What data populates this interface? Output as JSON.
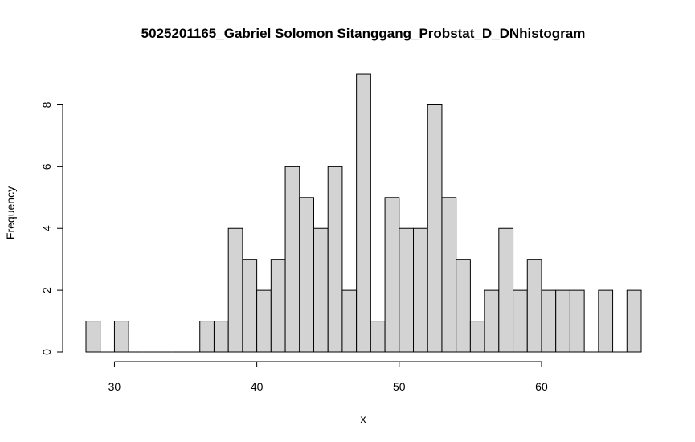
{
  "chart_data": {
    "type": "bar",
    "title": "5025201165_Gabriel Solomon Sitanggang_Probstat_D_DNhistogram",
    "xlabel": "x",
    "ylabel": "Frequency",
    "bin_width": 1,
    "bins": [
      {
        "start": 28,
        "count": 1
      },
      {
        "start": 29,
        "count": 0
      },
      {
        "start": 30,
        "count": 1
      },
      {
        "start": 31,
        "count": 0
      },
      {
        "start": 32,
        "count": 0
      },
      {
        "start": 33,
        "count": 0
      },
      {
        "start": 34,
        "count": 0
      },
      {
        "start": 35,
        "count": 0
      },
      {
        "start": 36,
        "count": 1
      },
      {
        "start": 37,
        "count": 1
      },
      {
        "start": 38,
        "count": 4
      },
      {
        "start": 39,
        "count": 3
      },
      {
        "start": 40,
        "count": 2
      },
      {
        "start": 41,
        "count": 3
      },
      {
        "start": 42,
        "count": 6
      },
      {
        "start": 43,
        "count": 5
      },
      {
        "start": 44,
        "count": 4
      },
      {
        "start": 45,
        "count": 6
      },
      {
        "start": 46,
        "count": 2
      },
      {
        "start": 47,
        "count": 9
      },
      {
        "start": 48,
        "count": 1
      },
      {
        "start": 49,
        "count": 5
      },
      {
        "start": 50,
        "count": 4
      },
      {
        "start": 51,
        "count": 4
      },
      {
        "start": 52,
        "count": 8
      },
      {
        "start": 53,
        "count": 5
      },
      {
        "start": 54,
        "count": 3
      },
      {
        "start": 55,
        "count": 1
      },
      {
        "start": 56,
        "count": 2
      },
      {
        "start": 57,
        "count": 4
      },
      {
        "start": 58,
        "count": 2
      },
      {
        "start": 59,
        "count": 3
      },
      {
        "start": 60,
        "count": 2
      },
      {
        "start": 61,
        "count": 2
      },
      {
        "start": 62,
        "count": 2
      },
      {
        "start": 63,
        "count": 0
      },
      {
        "start": 64,
        "count": 2
      },
      {
        "start": 65,
        "count": 0
      },
      {
        "start": 66,
        "count": 2
      }
    ],
    "x_ticks": [
      30,
      40,
      50,
      60
    ],
    "y_ticks": [
      0,
      2,
      4,
      6,
      8
    ],
    "xlim": [
      28,
      67
    ],
    "ylim": [
      0,
      9
    ],
    "grid": false,
    "bar_fill": "#d3d3d3",
    "bar_stroke": "#000000"
  }
}
